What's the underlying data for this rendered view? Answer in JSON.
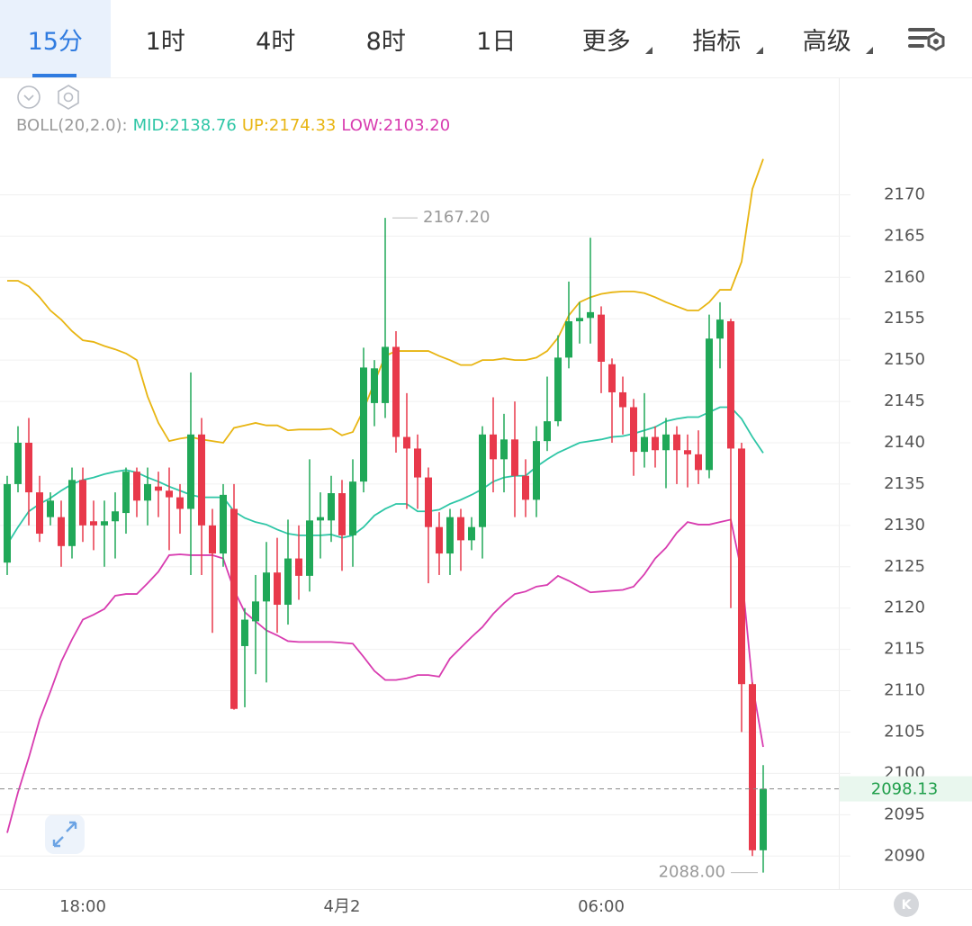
{
  "toolbar": {
    "tabs": [
      "15分",
      "1时",
      "4时",
      "8时",
      "1日",
      "更多",
      "指标",
      "高级"
    ],
    "selected": 0
  },
  "chart_data": {
    "type": "candlestick",
    "categories": [
      null,
      null,
      null,
      null,
      null,
      null,
      null,
      "18:00",
      null,
      null,
      null,
      null,
      null,
      null,
      null,
      null,
      null,
      null,
      null,
      null,
      null,
      null,
      null,
      null,
      null,
      null,
      null,
      null,
      null,
      null,
      null,
      "4月2",
      null,
      null,
      null,
      null,
      null,
      null,
      null,
      null,
      null,
      null,
      null,
      null,
      null,
      null,
      null,
      null,
      null,
      null,
      null,
      null,
      null,
      null,
      null,
      "06:00",
      null,
      null,
      null,
      null,
      null,
      null,
      null,
      null,
      null,
      null,
      null,
      null,
      null,
      null,
      null
    ],
    "open": [
      2125.5,
      2135,
      2140,
      2134,
      2131,
      2131,
      2127.5,
      2135.5,
      2130.5,
      2130,
      2130.5,
      2131.5,
      2136.5,
      2133,
      2134.7,
      2134.2,
      2133.4,
      2132,
      2141,
      2130,
      2126.6,
      2132,
      2115.4,
      2118.4,
      2120.8,
      2124.3,
      2120.4,
      2126,
      2123.9,
      2130.6,
      2130.6,
      2133.9,
      2128.8,
      2135.3,
      2144.8,
      2144.8,
      2151.6,
      2140.7,
      2139.3,
      2135.8,
      2129.8,
      2126.6,
      2131,
      2128.2,
      2129.8,
      2141,
      2138,
      2140.4,
      2136,
      2133.1,
      2140.2,
      2142.6,
      2150.3,
      2154.7,
      2155.1,
      2155.5,
      2149.5,
      2146.1,
      2144.3,
      2138.9,
      2140.7,
      2139.1,
      2141,
      2139.1,
      2138.6,
      2136.7,
      2152.6,
      2154.7,
      2139.3,
      2110.8,
      2090.7
    ],
    "high": [
      2136,
      2142,
      2143,
      2136,
      2134,
      2133,
      2137,
      2137,
      2133,
      2133,
      2134,
      2137,
      2137,
      2137,
      2136.5,
      2137,
      2135,
      2148.5,
      2143,
      2132,
      2135,
      2135,
      2120,
      2124,
      2128,
      2128.5,
      2130.7,
      2130,
      2138,
      2134,
      2136,
      2135.5,
      2138,
      2151.5,
      2150,
      2167.2,
      2153.5,
      2146,
      2141,
      2137,
      2131.6,
      2132,
      2132,
      2131,
      2142,
      2145.5,
      2143.5,
      2145,
      2138,
      2142,
      2148,
      2153,
      2159.5,
      2157,
      2164.8,
      2156.5,
      2150.2,
      2148,
      2145.3,
      2146,
      2142,
      2143,
      2142,
      2141,
      2141.5,
      2155.5,
      2157,
      2155,
      2140,
      2111,
      2101
    ],
    "low": [
      2124,
      2134,
      2130,
      2128,
      2130,
      2125,
      2126,
      2128,
      2127,
      2125,
      2126,
      2129,
      2131,
      2130,
      2131,
      2127,
      2129,
      2124,
      2124,
      2117,
      2125,
      2107.7,
      2108,
      2112,
      2111,
      2117,
      2118,
      2121,
      2122,
      2126,
      2128,
      2124.5,
      2125,
      2134,
      2142,
      2143,
      2138.8,
      2132,
      2132,
      2123,
      2124,
      2124,
      2124.5,
      2127,
      2126,
      2134,
      2134,
      2131,
      2131,
      2131,
      2139,
      2142,
      2149,
      2152,
      2152,
      2146,
      2140,
      2141,
      2136,
      2137,
      2137,
      2134.5,
      2135,
      2134.6,
      2135,
      2135.7,
      2149,
      2120,
      2105,
      2090,
      2088
    ],
    "close": [
      2135,
      2140,
      2134,
      2129,
      2133,
      2127.5,
      2135.5,
      2130,
      2130,
      2130.5,
      2131.7,
      2136.5,
      2133,
      2135,
      2134.2,
      2133.4,
      2132,
      2141,
      2130,
      2126.6,
      2133.7,
      2107.8,
      2118.6,
      2120.8,
      2124.3,
      2120.4,
      2126,
      2123.9,
      2130.6,
      2131,
      2133.9,
      2128.8,
      2135.3,
      2149.1,
      2149,
      2151.6,
      2140.7,
      2139.3,
      2135.8,
      2129.8,
      2126.6,
      2131,
      2128.2,
      2129.8,
      2141,
      2138,
      2140.4,
      2136,
      2133.1,
      2140.2,
      2142.6,
      2150.3,
      2154.7,
      2155.1,
      2155.8,
      2149.8,
      2146.1,
      2144.3,
      2138.9,
      2140.7,
      2139.1,
      2141,
      2139.1,
      2138.6,
      2136.7,
      2152.6,
      2154.9,
      2139.3,
      2110.8,
      2090.7,
      2098.13
    ],
    "up_color": "#20a858",
    "down_color": "#e8394b",
    "indicator": {
      "label": "BOLL(20,2.0):",
      "lines": [
        {
          "name": "MID:2138.76",
          "color": "#2ec6a6",
          "values": [
            2127.7,
            2129.8,
            2131.7,
            2132.6,
            2133.3,
            2134.2,
            2135.0,
            2135.5,
            2135.8,
            2136.2,
            2136.5,
            2136.7,
            2136.4,
            2135.8,
            2135.3,
            2134.7,
            2134.2,
            2133.7,
            2133.4,
            2133.4,
            2133.4,
            2131.7,
            2130.9,
            2130.4,
            2130.1,
            2129.5,
            2129.0,
            2128.8,
            2128.8,
            2128.8,
            2128.9,
            2128.5,
            2128.8,
            2129.8,
            2131.2,
            2132.0,
            2132.6,
            2132.6,
            2131.7,
            2131.7,
            2131.9,
            2132.6,
            2133.1,
            2133.7,
            2134.4,
            2135.3,
            2135.8,
            2136.0,
            2136.0,
            2137.1,
            2138.0,
            2138.8,
            2139.4,
            2140.0,
            2140.2,
            2140.4,
            2140.7,
            2140.8,
            2141.1,
            2141.5,
            2141.9,
            2142.6,
            2142.9,
            2143.1,
            2143.1,
            2143.7,
            2144.3,
            2144.3,
            2142.9,
            2140.7,
            2138.76
          ]
        },
        {
          "name": "UP:2174.33",
          "color": "#e8b512",
          "values": [
            2159.6,
            2159.6,
            2158.9,
            2157.6,
            2156.0,
            2154.9,
            2153.5,
            2152.4,
            2152.2,
            2151.7,
            2151.3,
            2150.8,
            2150.0,
            2145.6,
            2142.4,
            2140.2,
            2140.5,
            2140.7,
            2140.4,
            2140.2,
            2140.0,
            2141.8,
            2142.1,
            2142.4,
            2142.1,
            2142.1,
            2141.5,
            2141.6,
            2141.6,
            2141.6,
            2141.7,
            2140.9,
            2141.3,
            2144.0,
            2147.3,
            2150.5,
            2151.1,
            2151.1,
            2151.1,
            2151.1,
            2150.5,
            2150.0,
            2149.4,
            2149.4,
            2150.0,
            2150.0,
            2150.2,
            2150.0,
            2150.0,
            2150.3,
            2151.1,
            2152.7,
            2155.4,
            2157.0,
            2157.6,
            2158.0,
            2158.2,
            2158.3,
            2158.3,
            2158.1,
            2157.6,
            2157.0,
            2156.5,
            2156.0,
            2156.0,
            2157.0,
            2158.5,
            2158.5,
            2161.9,
            2170.7,
            2174.33
          ]
        },
        {
          "name": "LOW:2103.20",
          "color": "#d83cb0",
          "values": [
            2092.8,
            2097.7,
            2101.9,
            2106.5,
            2109.9,
            2113.5,
            2116.2,
            2118.6,
            2119.2,
            2119.9,
            2121.5,
            2121.7,
            2121.7,
            2123.0,
            2124.4,
            2126.4,
            2126.5,
            2126.4,
            2126.4,
            2126.4,
            2126.0,
            2122.2,
            2119.5,
            2118.4,
            2117.3,
            2116.7,
            2116.0,
            2115.9,
            2115.9,
            2115.9,
            2115.9,
            2115.8,
            2115.7,
            2114.1,
            2112.4,
            2111.3,
            2111.3,
            2111.5,
            2111.9,
            2111.9,
            2111.7,
            2113.9,
            2115.2,
            2116.5,
            2117.7,
            2119.3,
            2120.6,
            2121.7,
            2122.0,
            2122.6,
            2122.8,
            2123.9,
            2123.3,
            2122.6,
            2121.9,
            2122.0,
            2122.1,
            2122.2,
            2122.6,
            2124.1,
            2126.0,
            2127.3,
            2129.1,
            2130.4,
            2130.1,
            2130.1,
            2130.4,
            2130.7,
            2124.4,
            2110.8,
            2103.2
          ]
        }
      ]
    },
    "high_label": "2167.20",
    "low_label": "2088.00",
    "last_price": {
      "value": 2098.13,
      "label": "2098.13"
    },
    "ylim": [
      2086,
      2175.6
    ],
    "yticks": [
      2090,
      2095,
      2100,
      2105,
      2110,
      2115,
      2120,
      2125,
      2130,
      2135,
      2140,
      2145,
      2150,
      2155,
      2160,
      2165,
      2170
    ],
    "grid": true
  }
}
